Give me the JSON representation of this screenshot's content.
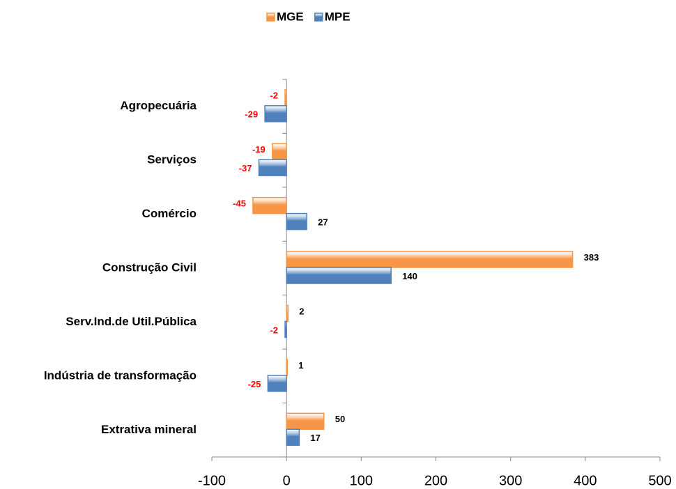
{
  "chart_data": {
    "type": "hbar",
    "categories": [
      "Agropecuária",
      "Serviços",
      "Comércio",
      "Construção Civil",
      "Serv.Ind.de Util.Pública",
      "Indústria de transformação",
      "Extrativa mineral"
    ],
    "series": [
      {
        "name": "MGE",
        "color": "#f79646",
        "values": [
          -2,
          -19,
          -45,
          383,
          2,
          1,
          50
        ]
      },
      {
        "name": "MPE",
        "color": "#4f81bd",
        "values": [
          -29,
          -37,
          27,
          140,
          -2,
          -25,
          17
        ]
      }
    ],
    "xlim": [
      -100,
      500
    ],
    "xticks": [
      -100,
      0,
      100,
      200,
      300,
      400,
      500
    ],
    "legend": "top"
  }
}
